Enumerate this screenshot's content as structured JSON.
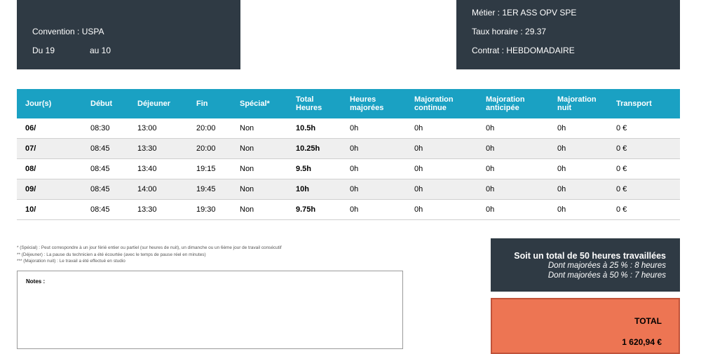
{
  "header_left": {
    "convention": "Convention : USPA",
    "period_from": "Du 19",
    "period_to": "au 10"
  },
  "header_right": {
    "metier": "Métier : 1ER ASS OPV SPE",
    "taux": "Taux horaire : 29.37",
    "contrat": "Contrat : HEBDOMADAIRE"
  },
  "table": {
    "headers": [
      "Jour(s)",
      "Début",
      "Déjeuner",
      "Fin",
      "Spécial*",
      "Total\nHeures",
      "Heures\nmajorées",
      "Majoration\ncontinue",
      "Majoration\nanticipée",
      "Majoration\nnuit",
      "Transport"
    ],
    "rows": [
      [
        "06/",
        "08:30",
        "13:00",
        "20:00",
        "Non",
        "10.5h",
        "0h",
        "0h",
        "0h",
        "0h",
        "0 €"
      ],
      [
        "07/",
        "08:45",
        "13:30",
        "20:00",
        "Non",
        "10.25h",
        "0h",
        "0h",
        "0h",
        "0h",
        "0 €"
      ],
      [
        "08/",
        "08:45",
        "13:40",
        "19:15",
        "Non",
        "9.5h",
        "0h",
        "0h",
        "0h",
        "0h",
        "0 €"
      ],
      [
        "09/",
        "08:45",
        "14:00",
        "19:45",
        "Non",
        "10h",
        "0h",
        "0h",
        "0h",
        "0h",
        "0 €"
      ],
      [
        "10/",
        "08:45",
        "13:30",
        "19:30",
        "Non",
        "9.75h",
        "0h",
        "0h",
        "0h",
        "0h",
        "0 €"
      ]
    ]
  },
  "footnotes": {
    "f1": "* (Spécial) : Peut correspondre à un jour férié entier ou partiel (sur heures de nuit), un dimanche ou un 6ème jour de travail consécutif",
    "f2": "** (Déjeuner) : La pause du technicien a été écourtée (avec le temps de pause réel en minutes)",
    "f3": "*** (Majoration nuit) : Le travail a été effectué en studio"
  },
  "notes": {
    "label": "Notes :"
  },
  "summary": {
    "total_line": "Soit un total de 50 heures travaillées",
    "maj25": "Dont majorées à 25 % : 8 heures",
    "maj50": "Dont majorées à 50 % : 7 heures"
  },
  "total": {
    "label": "TOTAL",
    "value": "1 620,94 €"
  }
}
